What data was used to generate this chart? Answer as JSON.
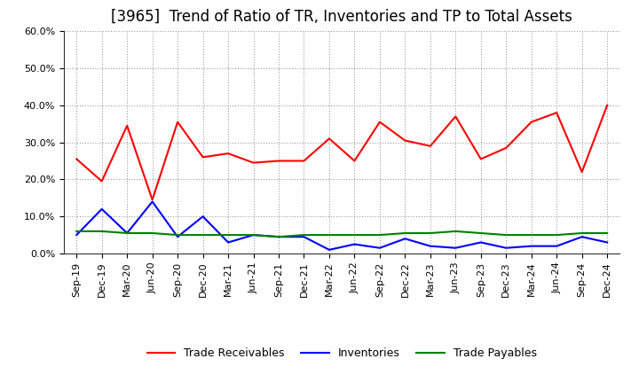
{
  "title": "[3965]  Trend of Ratio of TR, Inventories and TP to Total Assets",
  "labels": [
    "Sep-19",
    "Dec-19",
    "Mar-20",
    "Jun-20",
    "Sep-20",
    "Dec-20",
    "Mar-21",
    "Jun-21",
    "Sep-21",
    "Dec-21",
    "Mar-22",
    "Jun-22",
    "Sep-22",
    "Dec-22",
    "Mar-23",
    "Jun-23",
    "Sep-23",
    "Dec-23",
    "Mar-24",
    "Jun-24",
    "Sep-24",
    "Dec-24"
  ],
  "trade_receivables": [
    25.5,
    19.5,
    34.5,
    14.5,
    35.5,
    26.0,
    27.0,
    24.5,
    25.0,
    25.0,
    31.0,
    25.0,
    35.5,
    30.5,
    29.0,
    37.0,
    25.5,
    28.5,
    35.5,
    38.0,
    22.0,
    40.0
  ],
  "inventories": [
    5.0,
    12.0,
    5.5,
    14.0,
    4.5,
    10.0,
    3.0,
    5.0,
    4.5,
    4.5,
    1.0,
    2.5,
    1.5,
    4.0,
    2.0,
    1.5,
    3.0,
    1.5,
    2.0,
    2.0,
    4.5,
    3.0
  ],
  "trade_payables": [
    6.0,
    6.0,
    5.5,
    5.5,
    5.0,
    5.0,
    5.0,
    5.0,
    4.5,
    5.0,
    5.0,
    5.0,
    5.0,
    5.5,
    5.5,
    6.0,
    5.5,
    5.0,
    5.0,
    5.0,
    5.5,
    5.5
  ],
  "tr_color": "#ff0000",
  "inv_color": "#0000ff",
  "tp_color": "#008000",
  "ylim": [
    0.0,
    60.0
  ],
  "yticks": [
    0.0,
    10.0,
    20.0,
    30.0,
    40.0,
    50.0,
    60.0
  ],
  "background_color": "#ffffff",
  "grid_color": "#888888",
  "title_fontsize": 12,
  "tick_fontsize": 8,
  "legend_labels": [
    "Trade Receivables",
    "Inventories",
    "Trade Payables"
  ]
}
